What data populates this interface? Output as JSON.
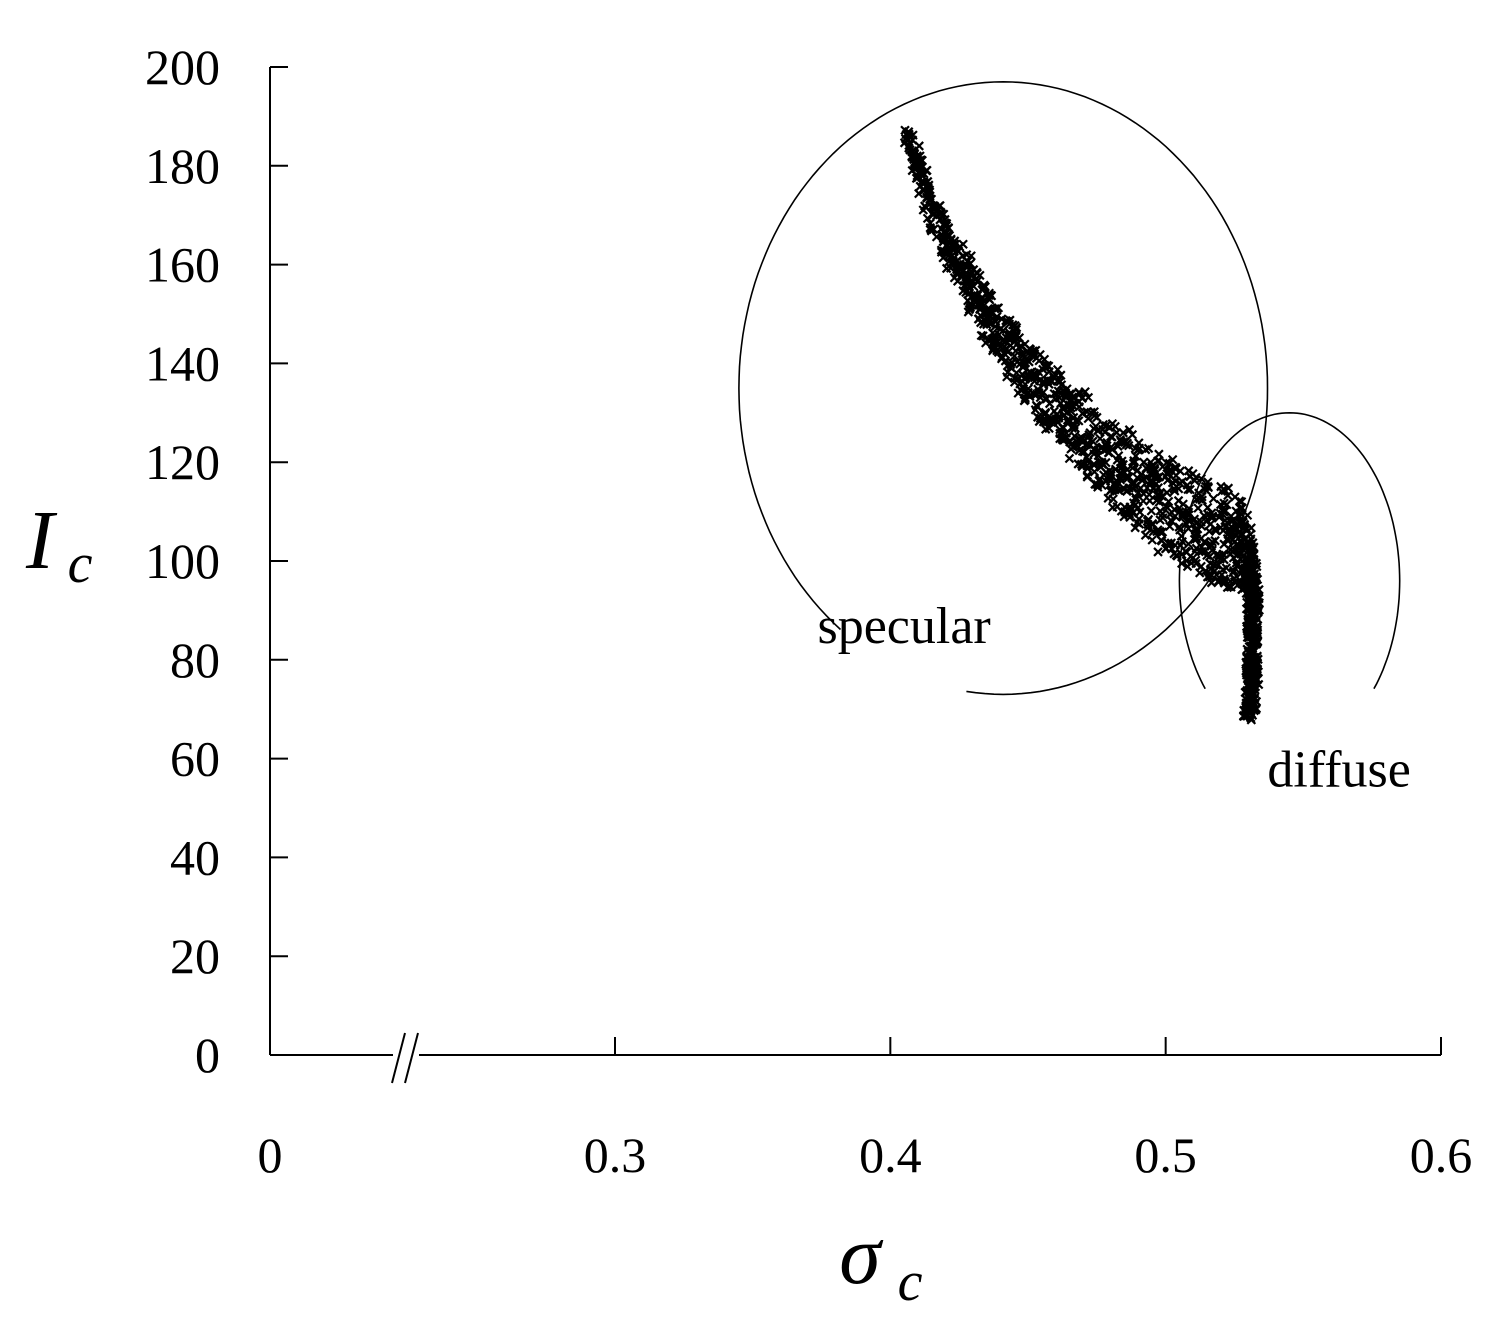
{
  "chart_data": {
    "type": "scatter",
    "title": "",
    "xlabel_main": "σ",
    "xlabel_sub": "c",
    "ylabel_main": "I",
    "ylabel_sub": "c",
    "x_axis_break": true,
    "x_ticks": [
      {
        "value": 0,
        "label": "0"
      },
      {
        "value": 0.3,
        "label": "0.3"
      },
      {
        "value": 0.4,
        "label": "0.4"
      },
      {
        "value": 0.5,
        "label": "0.5"
      },
      {
        "value": 0.6,
        "label": "0.6"
      }
    ],
    "y_ticks": [
      {
        "value": 0,
        "label": "0"
      },
      {
        "value": 20,
        "label": "20"
      },
      {
        "value": 40,
        "label": "40"
      },
      {
        "value": 60,
        "label": "60"
      },
      {
        "value": 80,
        "label": "80"
      },
      {
        "value": 100,
        "label": "100"
      },
      {
        "value": 120,
        "label": "120"
      },
      {
        "value": 140,
        "label": "140"
      },
      {
        "value": 160,
        "label": "160"
      },
      {
        "value": 180,
        "label": "180"
      },
      {
        "value": 200,
        "label": "200"
      }
    ],
    "xlim_shown": [
      0.175,
      0.6
    ],
    "ylim": [
      0,
      200
    ],
    "grid": false,
    "legend": "none",
    "marker_color": "#000000",
    "annotations": [
      {
        "text": "specular",
        "x": 0.405,
        "y": 87
      },
      {
        "text": "diffuse",
        "x": 0.563,
        "y": 58
      }
    ],
    "region_outlines": [
      {
        "name": "specular",
        "cx": 0.441,
        "cy": 135,
        "rx": 0.096,
        "ry": 62
      },
      {
        "name": "diffuse",
        "cx": 0.545,
        "cy": 96,
        "rx": 0.04,
        "ry": 34
      }
    ],
    "series": [
      {
        "name": "",
        "ridge": [
          [
            0.406,
            186
          ],
          [
            0.41,
            180
          ],
          [
            0.415,
            172
          ],
          [
            0.42,
            165
          ],
          [
            0.425,
            160
          ],
          [
            0.43,
            155
          ],
          [
            0.435,
            150
          ],
          [
            0.44,
            146
          ],
          [
            0.445,
            142
          ],
          [
            0.45,
            138
          ],
          [
            0.455,
            135
          ],
          [
            0.46,
            132
          ],
          [
            0.465,
            129
          ],
          [
            0.47,
            126
          ],
          [
            0.475,
            123
          ],
          [
            0.48,
            120
          ],
          [
            0.485,
            118
          ],
          [
            0.49,
            115
          ],
          [
            0.495,
            113
          ],
          [
            0.5,
            111
          ],
          [
            0.505,
            109
          ],
          [
            0.51,
            108
          ],
          [
            0.515,
            106
          ],
          [
            0.52,
            105
          ],
          [
            0.525,
            104
          ],
          [
            0.528,
            103
          ],
          [
            0.53,
            100
          ],
          [
            0.531,
            97
          ],
          [
            0.532,
            94
          ],
          [
            0.532,
            91
          ],
          [
            0.531,
            88
          ],
          [
            0.532,
            84
          ],
          [
            0.531,
            80
          ],
          [
            0.532,
            76
          ],
          [
            0.531,
            72
          ],
          [
            0.53,
            69
          ]
        ],
        "band_halfwidth_y": [
          3,
          3,
          4,
          4,
          4,
          5,
          5,
          5,
          6,
          6,
          7,
          7,
          7,
          8,
          8,
          8,
          9,
          9,
          9,
          10,
          10,
          10,
          10,
          10,
          10,
          9,
          6,
          4,
          3,
          3,
          3,
          3,
          3,
          3,
          3,
          2
        ]
      }
    ]
  }
}
